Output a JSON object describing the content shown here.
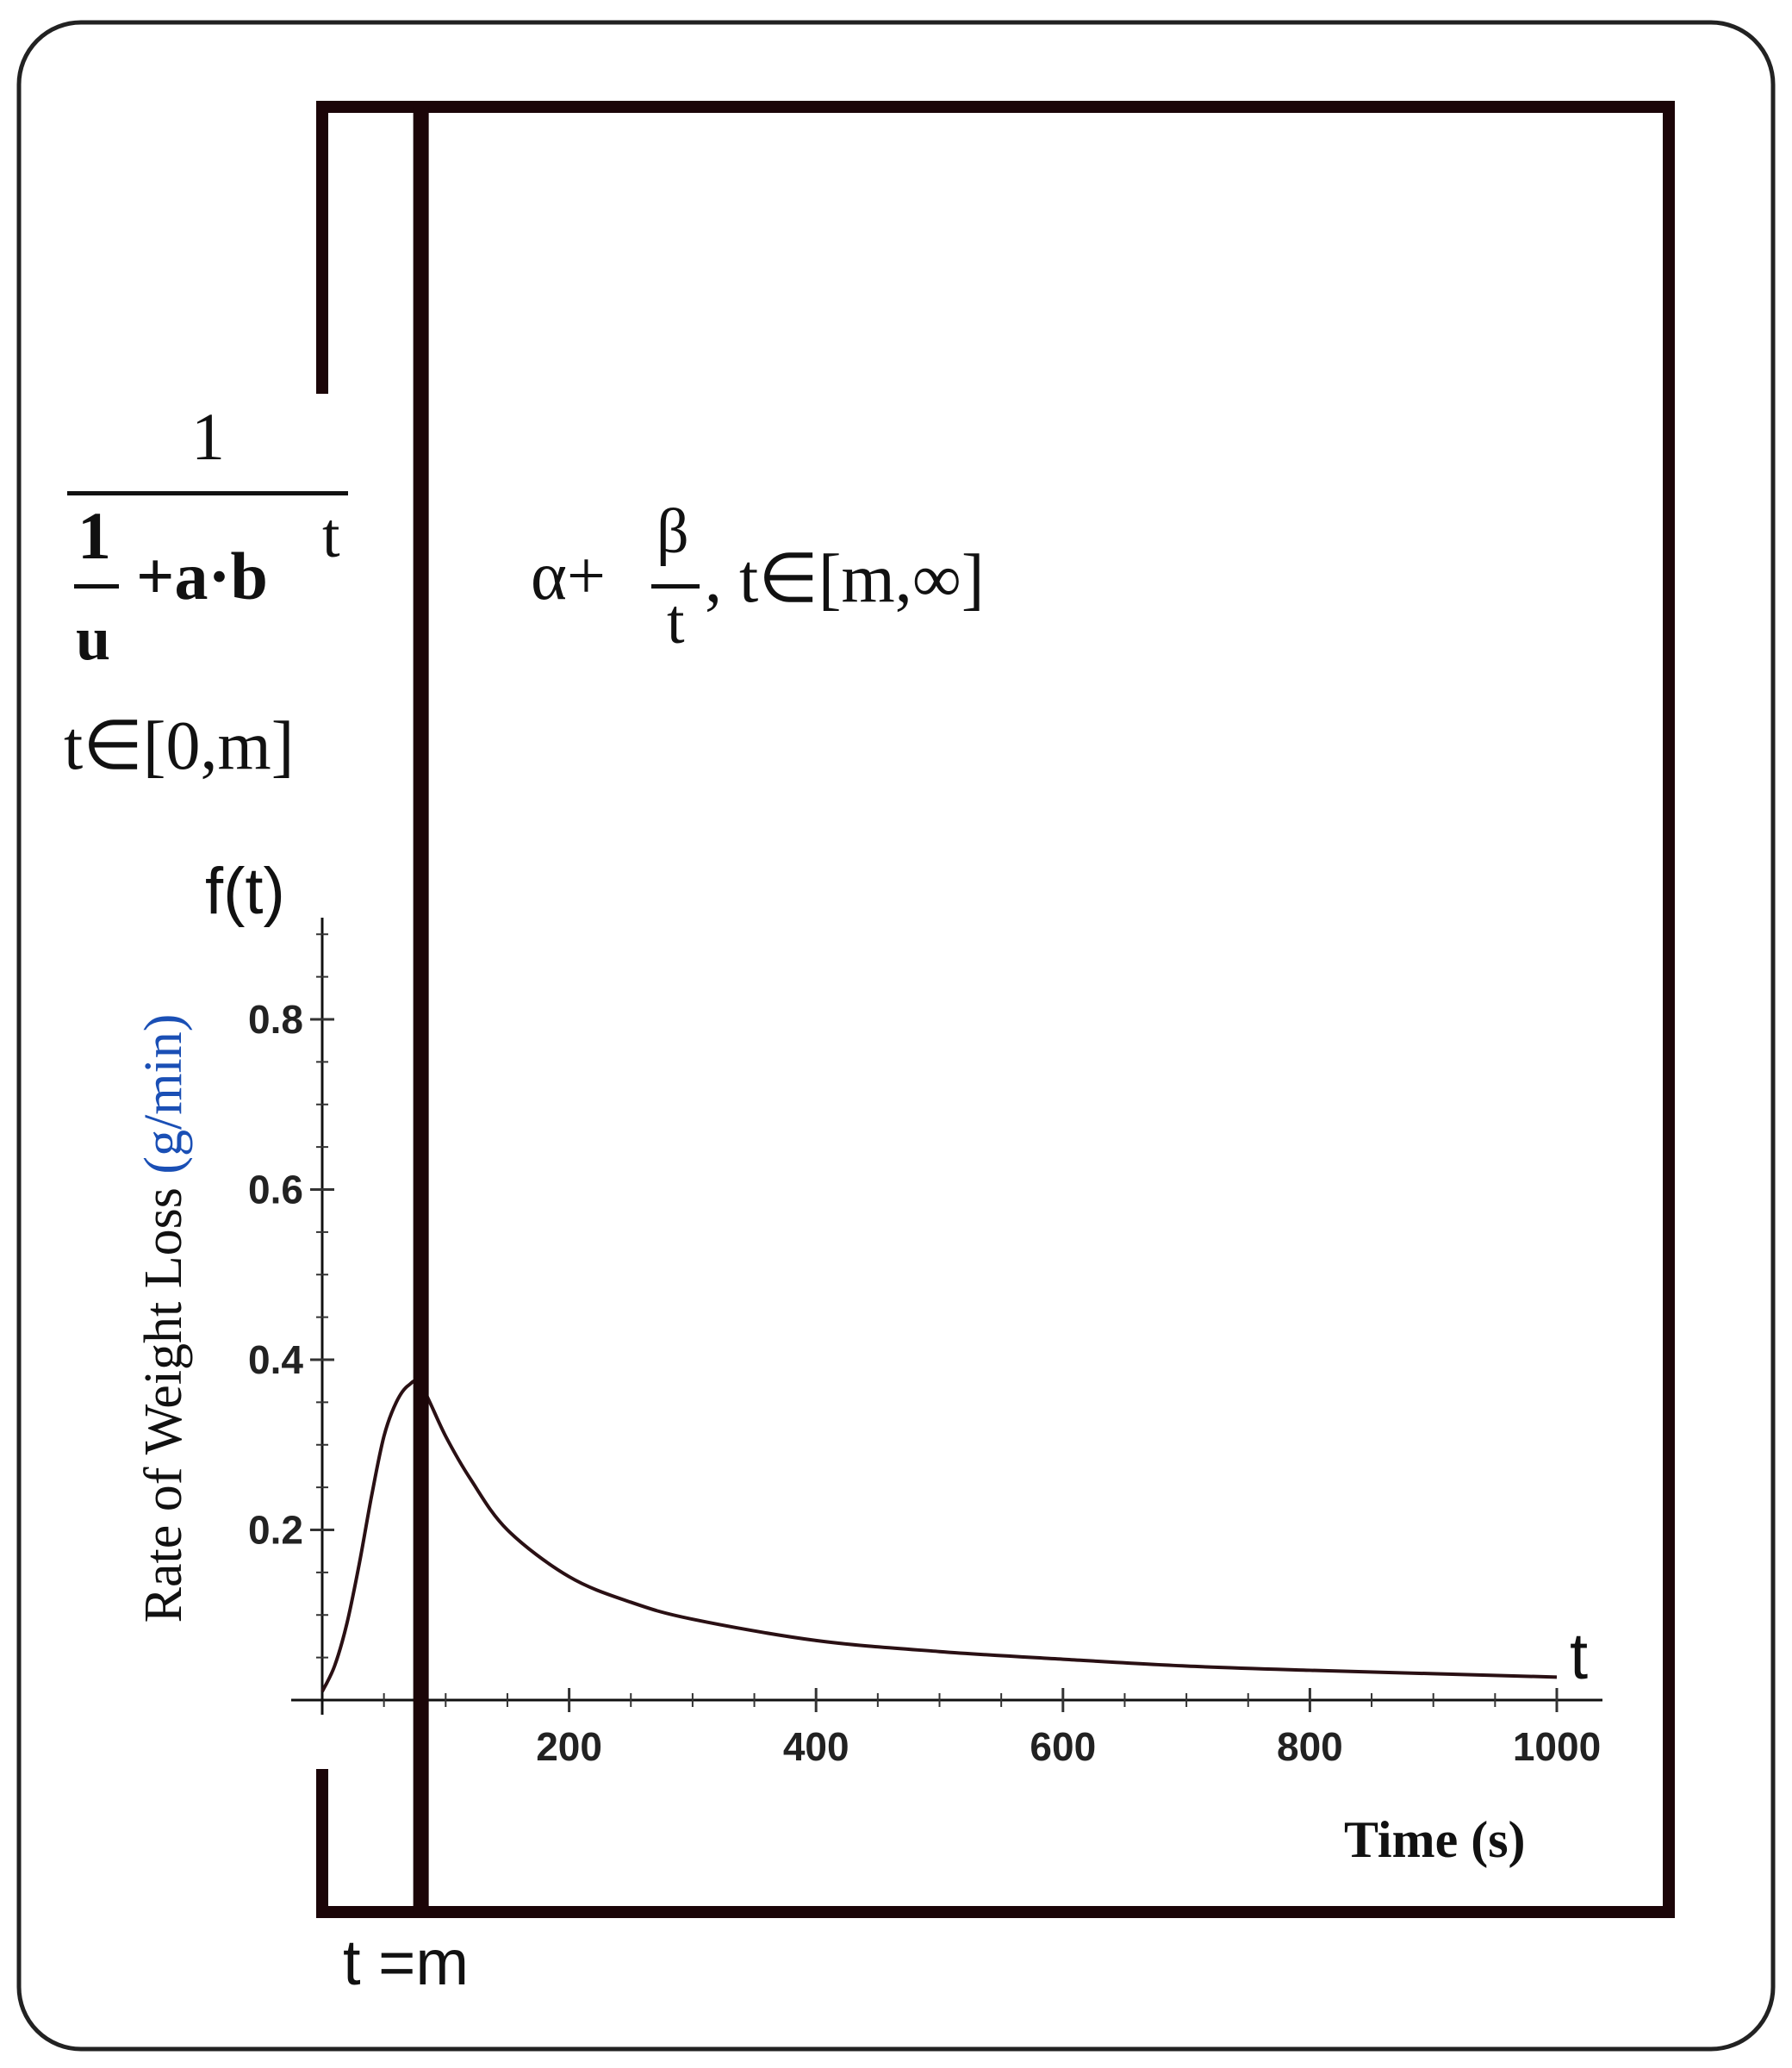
{
  "equations": {
    "left_num": "1",
    "left_inner_num": "1",
    "left_inner_den": "u",
    "left_plus_ab": "+a·b",
    "left_exp": "t",
    "left_domain": "t∈[0,m]",
    "right_alpha_plus": "α+",
    "right_beta": "β",
    "right_t": "t",
    "right_domain": ",  t∈[m,∞]"
  },
  "marker_label": "t =m",
  "chart_data": {
    "type": "line",
    "title": "",
    "xlabel": "Time (s)",
    "ylabel_prefix": "Rate of Weight Loss ",
    "ylabel_unit": "(g/min)",
    "x_axis_symbol": "t",
    "y_axis_symbol": "f(t)",
    "xlim": [
      0,
      1000
    ],
    "ylim": [
      0,
      0.9
    ],
    "x_ticks": [
      200,
      400,
      600,
      800,
      1000
    ],
    "x_tick_labels": [
      "200",
      "400",
      "600",
      "800",
      "1000"
    ],
    "y_ticks": [
      0.2,
      0.4,
      0.6,
      0.8
    ],
    "y_tick_labels": [
      "0.2",
      "0.4",
      "0.6",
      "0.8"
    ],
    "x_minor_step": 50,
    "y_minor_step": 0.05,
    "m": 80,
    "series": [
      {
        "x": [
          0,
          10,
          20,
          30,
          40,
          50,
          60,
          70,
          80,
          100,
          120,
          150,
          200,
          250,
          300,
          400,
          500,
          600,
          700,
          800,
          900,
          1000
        ],
        "y": [
          0.01,
          0.04,
          0.09,
          0.16,
          0.24,
          0.31,
          0.35,
          0.37,
          0.37,
          0.31,
          0.26,
          0.2,
          0.145,
          0.115,
          0.095,
          0.07,
          0.057,
          0.048,
          0.04,
          0.035,
          0.031,
          0.027
        ]
      }
    ],
    "colors": {
      "curve": "#2a1014",
      "axis": "#111111",
      "frame": "#1b0508",
      "unit_label": "#1a4fb5"
    },
    "grid": false
  }
}
